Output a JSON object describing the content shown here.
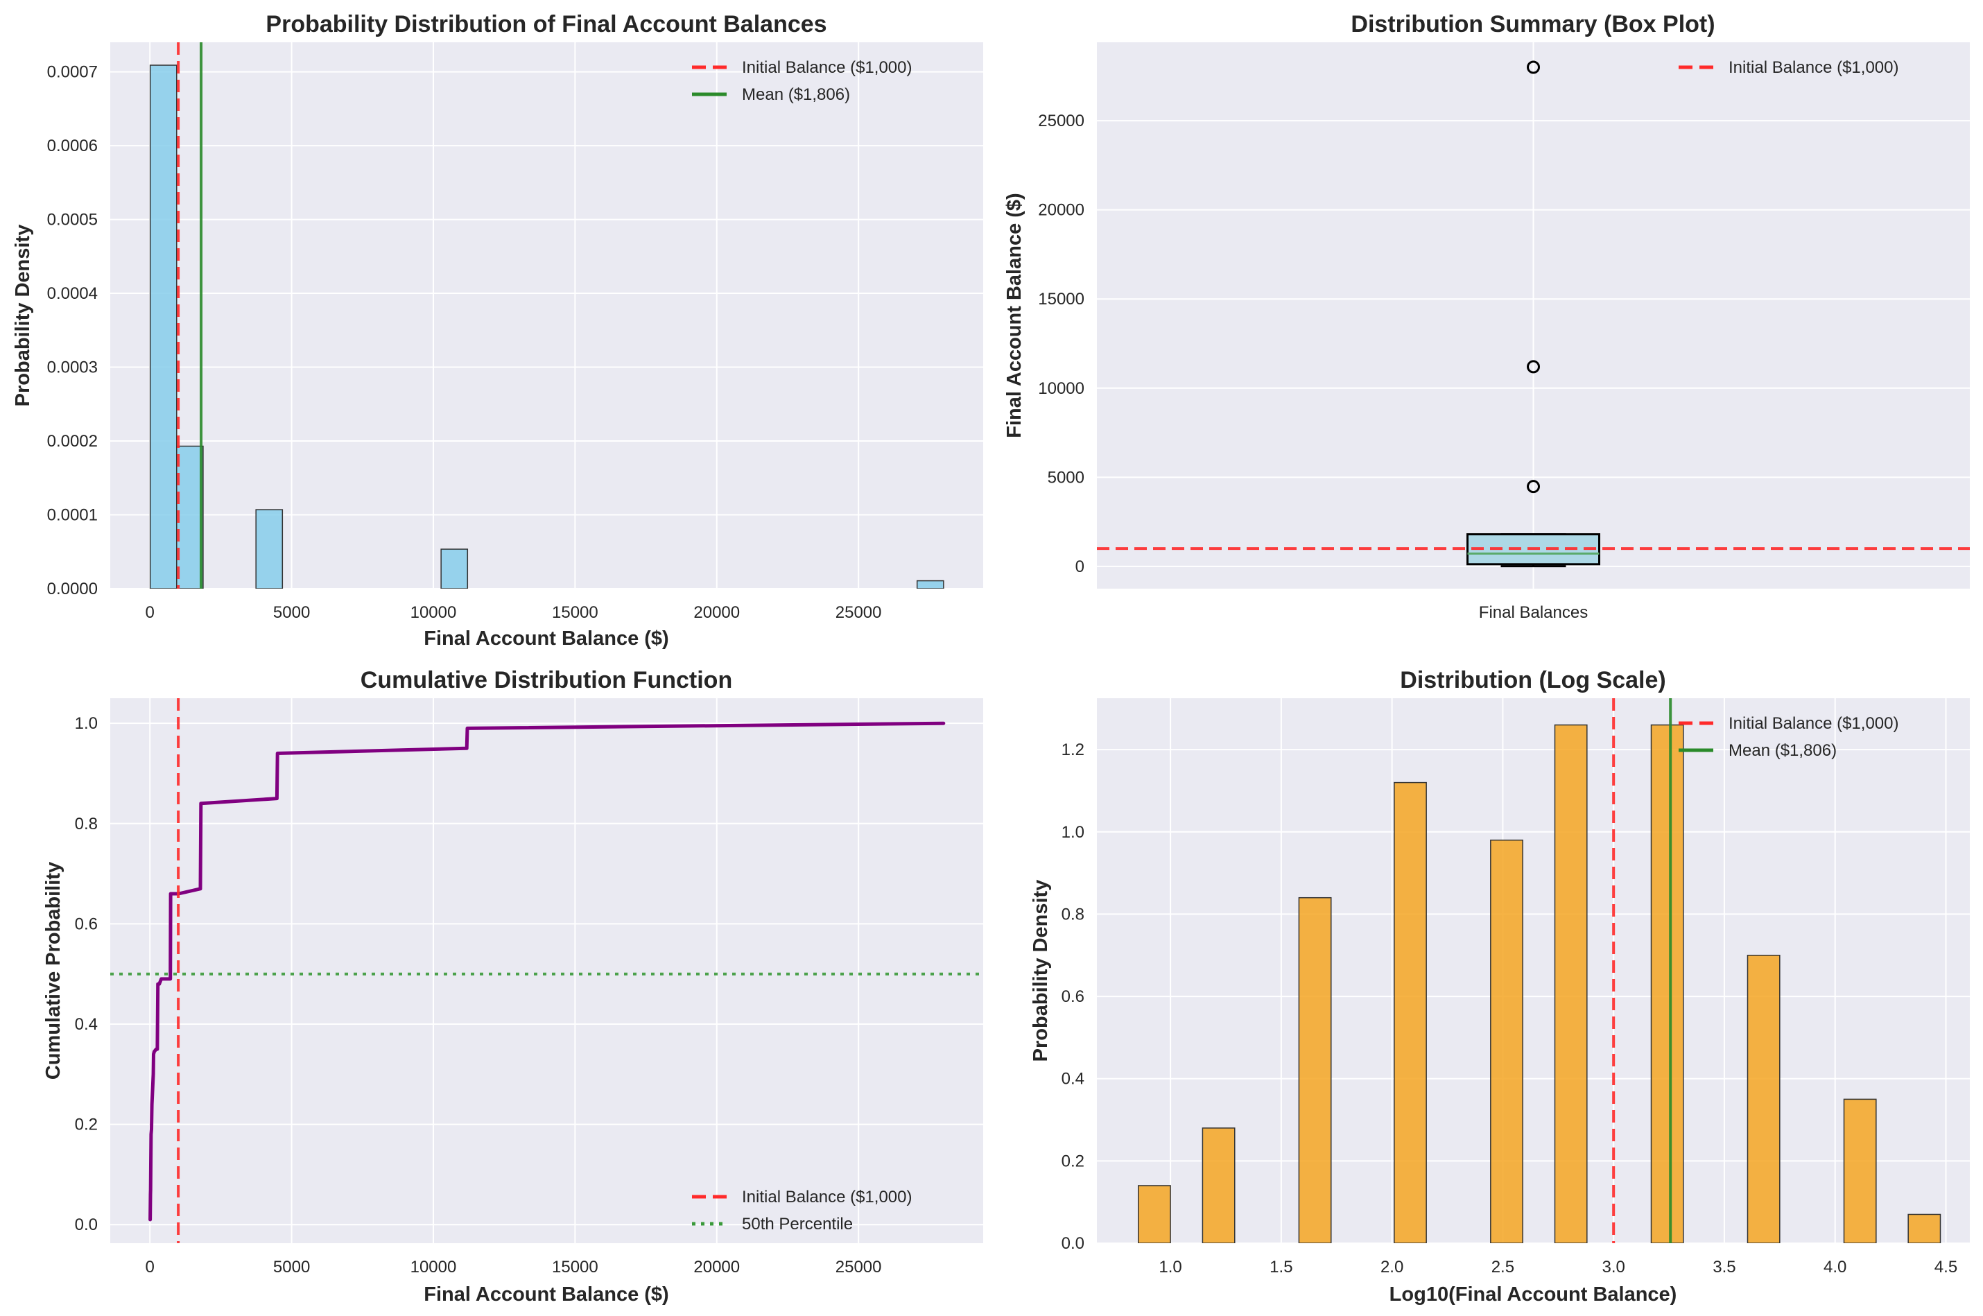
{
  "figure": {
    "background": "#ffffff",
    "axes_background": "#eaeaf2",
    "grid_color": "#ffffff"
  },
  "colors": {
    "initial_balance": "#ff2a2a",
    "mean": "#2a8a2a",
    "percentile": "#3a9a3a",
    "hist_fill": "#87ceeb",
    "log_fill": "#f5a623",
    "box_fill": "#add8e6",
    "median": "#5aaa6a",
    "cdf_line": "#800080",
    "edge": "#333333"
  },
  "chart_data": [
    {
      "id": "histogram",
      "type": "bar",
      "title": "Probability Distribution of Final Account Balances",
      "xlabel": "Final Account Balance ($)",
      "ylabel": "Probability Density",
      "xlim": [
        -1400,
        29400
      ],
      "ylim": [
        0,
        0.00074
      ],
      "xticks": [
        0,
        5000,
        10000,
        15000,
        20000,
        25000
      ],
      "xtick_labels": [
        "0",
        "5000",
        "10000",
        "15000",
        "20000",
        "25000"
      ],
      "yticks": [
        0,
        0.0001,
        0.0002,
        0.0003,
        0.0004,
        0.0005,
        0.0006,
        0.0007
      ],
      "ytick_labels": [
        "0.0000",
        "0.0001",
        "0.0002",
        "0.0003",
        "0.0004",
        "0.0005",
        "0.0006",
        "0.0007"
      ],
      "grid": true,
      "bins": [
        {
          "x0": 10,
          "x1": 943,
          "density": 0.000709
        },
        {
          "x0": 943,
          "x1": 1876,
          "density": 0.000193
        },
        {
          "x0": 3742,
          "x1": 4675,
          "density": 0.000107
        },
        {
          "x0": 10273,
          "x1": 11206,
          "density": 5.35e-05
        },
        {
          "x0": 27069,
          "x1": 28002,
          "density": 1.07e-05
        }
      ],
      "vlines": [
        {
          "x": 1000,
          "style": "dashed",
          "color_key": "initial_balance",
          "label": "Initial Balance ($1,000)"
        },
        {
          "x": 1806,
          "style": "solid",
          "color_key": "mean",
          "label": "Mean ($1,806)"
        }
      ],
      "legend": {
        "placement": "top-right",
        "entries": [
          {
            "label": "Initial Balance ($1,000)",
            "style": "dashed",
            "color_key": "initial_balance"
          },
          {
            "label": "Mean ($1,806)",
            "style": "solid",
            "color_key": "mean"
          }
        ]
      }
    },
    {
      "id": "boxplot",
      "type": "box",
      "title": "Distribution Summary (Box Plot)",
      "xlabel": "",
      "ylabel": "Final Account Balance ($)",
      "category": "Final Balances",
      "ylim": [
        -1250,
        29400
      ],
      "yticks": [
        0,
        5000,
        10000,
        15000,
        20000,
        25000
      ],
      "ytick_labels": [
        "0",
        "5000",
        "10000",
        "15000",
        "20000",
        "25000"
      ],
      "grid": true,
      "box": {
        "whisker_low": 10,
        "q1": 120,
        "median": 720,
        "q3": 1800,
        "whisker_high": 1800
      },
      "outliers": [
        4480,
        11200,
        28000
      ],
      "hlines": [
        {
          "y": 1000,
          "style": "dashed",
          "color_key": "initial_balance",
          "label": "Initial Balance ($1,000)"
        }
      ],
      "legend": {
        "placement": "top-right",
        "entries": [
          {
            "label": "Initial Balance ($1,000)",
            "style": "dashed",
            "color_key": "initial_balance"
          }
        ]
      }
    },
    {
      "id": "cdf",
      "type": "line",
      "title": "Cumulative Distribution Function",
      "xlabel": "Final Account Balance ($)",
      "ylabel": "Cumulative Probability",
      "xlim": [
        -1400,
        29400
      ],
      "ylim": [
        -0.037,
        1.05
      ],
      "xticks": [
        0,
        5000,
        10000,
        15000,
        20000,
        25000
      ],
      "xtick_labels": [
        "0",
        "5000",
        "10000",
        "15000",
        "20000",
        "25000"
      ],
      "yticks": [
        0,
        0.2,
        0.4,
        0.6,
        0.8,
        1.0
      ],
      "ytick_labels": [
        "0.0",
        "0.2",
        "0.4",
        "0.6",
        "0.8",
        "1.0"
      ],
      "grid": true,
      "x": [
        10,
        20,
        25,
        30,
        40,
        55,
        70,
        120,
        130,
        150,
        220,
        260,
        280,
        330,
        400,
        720,
        730,
        750,
        1010,
        1780,
        1800,
        4480,
        4500,
        11150,
        11180,
        11200,
        28000
      ],
      "y": [
        0.01,
        0.06,
        0.07,
        0.12,
        0.18,
        0.19,
        0.24,
        0.3,
        0.34,
        0.345,
        0.35,
        0.35,
        0.48,
        0.48,
        0.49,
        0.49,
        0.66,
        0.66,
        0.66,
        0.67,
        0.84,
        0.85,
        0.94,
        0.95,
        0.95,
        0.99,
        1.0
      ],
      "vlines": [
        {
          "x": 1000,
          "style": "dashed",
          "color_key": "initial_balance",
          "label": "Initial Balance ($1,000)"
        }
      ],
      "hlines": [
        {
          "y": 0.5,
          "style": "dotted",
          "color_key": "percentile",
          "label": "50th Percentile"
        }
      ],
      "legend": {
        "placement": "bottom-right",
        "entries": [
          {
            "label": "Initial Balance ($1,000)",
            "style": "dashed",
            "color_key": "initial_balance"
          },
          {
            "label": "50th Percentile",
            "style": "dotted",
            "color_key": "percentile"
          }
        ]
      }
    },
    {
      "id": "loghist",
      "type": "bar",
      "title": "Distribution (Log Scale)",
      "xlabel": "Log10(Final Account Balance)",
      "ylabel": "Probability Density",
      "xlim": [
        0.668,
        4.608
      ],
      "ylim": [
        0,
        1.325
      ],
      "xticks": [
        1.0,
        1.5,
        2.0,
        2.5,
        3.0,
        3.5,
        4.0,
        4.5
      ],
      "xtick_labels": [
        "1.0",
        "1.5",
        "2.0",
        "2.5",
        "3.0",
        "3.5",
        "4.0",
        "4.5"
      ],
      "yticks": [
        0,
        0.2,
        0.4,
        0.6,
        0.8,
        1.0,
        1.2
      ],
      "ytick_labels": [
        "0.0",
        "0.2",
        "0.4",
        "0.6",
        "0.8",
        "1.0",
        "1.2"
      ],
      "grid": true,
      "bins": [
        {
          "x0": 0.855,
          "x1": 1.0,
          "density": 0.14
        },
        {
          "x0": 1.145,
          "x1": 1.29,
          "density": 0.28
        },
        {
          "x0": 1.58,
          "x1": 1.725,
          "density": 0.84
        },
        {
          "x0": 2.01,
          "x1": 2.155,
          "density": 1.12
        },
        {
          "x0": 2.445,
          "x1": 2.59,
          "density": 0.98
        },
        {
          "x0": 2.735,
          "x1": 2.88,
          "density": 1.26
        },
        {
          "x0": 3.17,
          "x1": 3.315,
          "density": 1.26
        },
        {
          "x0": 3.605,
          "x1": 3.75,
          "density": 0.7
        },
        {
          "x0": 4.04,
          "x1": 4.185,
          "density": 0.35
        },
        {
          "x0": 4.33,
          "x1": 4.475,
          "density": 0.07
        }
      ],
      "vlines": [
        {
          "x": 3.0,
          "style": "dashed",
          "color_key": "initial_balance",
          "label": "Initial Balance ($1,000)"
        },
        {
          "x": 3.2567,
          "style": "solid",
          "color_key": "mean",
          "label": "Mean ($1,806)"
        }
      ],
      "legend": {
        "placement": "top-right",
        "entries": [
          {
            "label": "Initial Balance ($1,000)",
            "style": "dashed",
            "color_key": "initial_balance"
          },
          {
            "label": "Mean ($1,806)",
            "style": "solid",
            "color_key": "mean"
          }
        ]
      }
    }
  ]
}
